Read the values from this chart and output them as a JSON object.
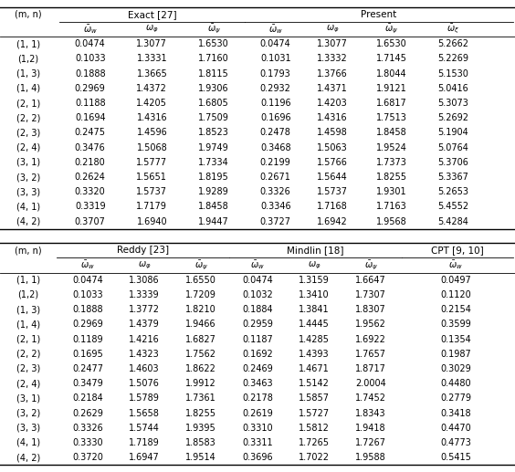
{
  "top_table": {
    "row_labels": [
      "(1, 1)",
      "(1,2)",
      "(1, 3)",
      "(1, 4)",
      "(2, 1)",
      "(2, 2)",
      "(2, 3)",
      "(2, 4)",
      "(3, 1)",
      "(3, 2)",
      "(3, 3)",
      "(4, 1)",
      "(4, 2)"
    ],
    "data": [
      [
        0.0474,
        1.3077,
        1.653,
        0.0474,
        1.3077,
        1.653,
        5.2662
      ],
      [
        0.1033,
        1.3331,
        1.716,
        0.1031,
        1.3332,
        1.7145,
        5.2269
      ],
      [
        0.1888,
        1.3665,
        1.8115,
        0.1793,
        1.3766,
        1.8044,
        5.153
      ],
      [
        0.2969,
        1.4372,
        1.9306,
        0.2932,
        1.4371,
        1.9121,
        5.0416
      ],
      [
        0.1188,
        1.4205,
        1.6805,
        0.1196,
        1.4203,
        1.6817,
        5.3073
      ],
      [
        0.1694,
        1.4316,
        1.7509,
        0.1696,
        1.4316,
        1.7513,
        5.2692
      ],
      [
        0.2475,
        1.4596,
        1.8523,
        0.2478,
        1.4598,
        1.8458,
        5.1904
      ],
      [
        0.3476,
        1.5068,
        1.9749,
        0.3468,
        1.5063,
        1.9524,
        5.0764
      ],
      [
        0.218,
        1.5777,
        1.7334,
        0.2199,
        1.5766,
        1.7373,
        5.3706
      ],
      [
        0.2624,
        1.5651,
        1.8195,
        0.2671,
        1.5644,
        1.8255,
        5.3367
      ],
      [
        0.332,
        1.5737,
        1.9289,
        0.3326,
        1.5737,
        1.9301,
        5.2653
      ],
      [
        0.3319,
        1.7179,
        1.8458,
        0.3346,
        1.7168,
        1.7163,
        5.4552
      ],
      [
        0.3707,
        1.694,
        1.9447,
        0.3727,
        1.6942,
        1.9568,
        5.4284
      ]
    ],
    "group_labels": [
      "Exact [27]",
      "Present"
    ],
    "exact_sub": [
      "$\\bar{\\omega}_w$",
      "$\\omega_\\varphi$",
      "$\\bar{\\omega}_\\psi$"
    ],
    "present_sub": [
      "$\\bar{\\omega}_w$",
      "$\\omega_\\varphi$",
      "$\\bar{\\omega}_\\psi$",
      "$\\bar{\\omega}_\\xi$"
    ]
  },
  "bottom_table": {
    "row_labels": [
      "(1, 1)",
      "(1,2)",
      "(1, 3)",
      "(1, 4)",
      "(2, 1)",
      "(2, 2)",
      "(2, 3)",
      "(2, 4)",
      "(3, 1)",
      "(3, 2)",
      "(3, 3)",
      "(4, 1)",
      "(4, 2)"
    ],
    "data": [
      [
        0.0474,
        1.3086,
        1.655,
        0.0474,
        1.3159,
        1.6647,
        0.0497
      ],
      [
        0.1033,
        1.3339,
        1.7209,
        0.1032,
        1.341,
        1.7307,
        0.112
      ],
      [
        0.1888,
        1.3772,
        1.821,
        0.1884,
        1.3841,
        1.8307,
        0.2154
      ],
      [
        0.2969,
        1.4379,
        1.9466,
        0.2959,
        1.4445,
        1.9562,
        0.3599
      ],
      [
        0.1189,
        1.4216,
        1.6827,
        0.1187,
        1.4285,
        1.6922,
        0.1354
      ],
      [
        0.1695,
        1.4323,
        1.7562,
        0.1692,
        1.4393,
        1.7657,
        0.1987
      ],
      [
        0.2477,
        1.4603,
        1.8622,
        0.2469,
        1.4671,
        1.8717,
        0.3029
      ],
      [
        0.3479,
        1.5076,
        1.9912,
        0.3463,
        1.5142,
        2.0004,
        0.448
      ],
      [
        0.2184,
        1.5789,
        1.7361,
        0.2178,
        1.5857,
        1.7452,
        0.2779
      ],
      [
        0.2629,
        1.5658,
        1.8255,
        0.2619,
        1.5727,
        1.8343,
        0.3418
      ],
      [
        0.3326,
        1.5744,
        1.9395,
        0.331,
        1.5812,
        1.9418,
        0.447
      ],
      [
        0.333,
        1.7189,
        1.8583,
        0.3311,
        1.7265,
        1.7267,
        0.4773
      ],
      [
        0.372,
        1.6947,
        1.9514,
        0.3696,
        1.7022,
        1.9588,
        0.5415
      ]
    ],
    "group_labels": [
      "Reddy [23]",
      "Mindlin [18]",
      "CPT [9, 10]"
    ],
    "reddy_sub": [
      "$\\bar{\\omega}_w$",
      "$\\omega_\\varphi$",
      "$\\bar{\\omega}_\\psi$"
    ],
    "mindlin_sub": [
      "$\\bar{\\omega}_w$",
      "$\\omega_\\varphi$",
      "$\\bar{\\omega}_\\psi$"
    ],
    "cpt_sub": [
      "$\\bar{\\omega}_w$"
    ]
  },
  "bg_color": "#ffffff",
  "text_color": "#000000",
  "line_color": "#000000",
  "font_size": 7.0,
  "header_font_size": 7.5
}
